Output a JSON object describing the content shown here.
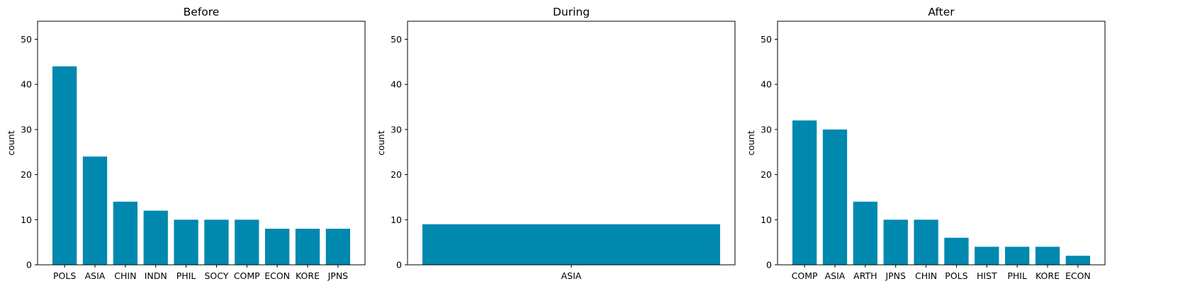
{
  "figure": {
    "bar_color": "#0088AF",
    "background": "#ffffff"
  },
  "chart_data": [
    {
      "type": "bar",
      "title": "Before",
      "xlabel": "",
      "ylabel": "count",
      "ylim": [
        0,
        54
      ],
      "yticks": [
        0,
        10,
        20,
        30,
        40,
        50
      ],
      "grid": false,
      "categories": [
        "POLS",
        "ASIA",
        "CHIN",
        "INDN",
        "PHIL",
        "SOCY",
        "COMP",
        "ECON",
        "KORE",
        "JPNS"
      ],
      "values": [
        44,
        24,
        14,
        12,
        10,
        10,
        10,
        8,
        8,
        8
      ]
    },
    {
      "type": "bar",
      "title": "During",
      "xlabel": "",
      "ylabel": "count",
      "ylim": [
        0,
        54
      ],
      "yticks": [
        0,
        10,
        20,
        30,
        40,
        50
      ],
      "grid": false,
      "categories": [
        "ASIA"
      ],
      "values": [
        9
      ]
    },
    {
      "type": "bar",
      "title": "After",
      "xlabel": "",
      "ylabel": "count",
      "ylim": [
        0,
        54
      ],
      "yticks": [
        0,
        10,
        20,
        30,
        40,
        50
      ],
      "grid": false,
      "categories": [
        "COMP",
        "ASIA",
        "ARTH",
        "JPNS",
        "CHIN",
        "POLS",
        "HIST",
        "PHIL",
        "KORE",
        "ECON"
      ],
      "values": [
        32,
        30,
        14,
        10,
        10,
        6,
        4,
        4,
        4,
        2
      ]
    }
  ]
}
